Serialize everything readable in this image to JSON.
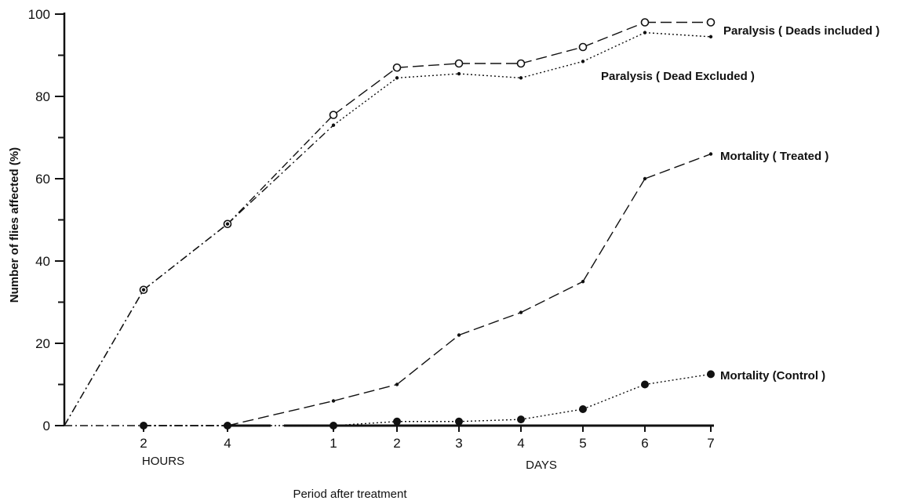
{
  "chart_data": {
    "type": "line",
    "ylabel": "Number of flies affected (%)",
    "xlabel": "Period after treatment",
    "ylim": [
      0,
      100
    ],
    "y_ticks": [
      "0",
      "20",
      "40",
      "60",
      "80",
      "100"
    ],
    "x_ticks": [
      "2",
      "4",
      "1",
      "2",
      "3",
      "4",
      "5",
      "6",
      "7"
    ],
    "x_group_labels": [
      "HOURS",
      "DAYS"
    ],
    "grid": false,
    "legend": "none",
    "series": [
      {
        "name": "Paralysis (Deads included)",
        "label_display": "Paralysis ( Deads included )",
        "line_style": "dashed",
        "marker": "open-circle",
        "x": [
          "0 h",
          "2 h",
          "4 h",
          "1 d",
          "2 d",
          "3 d",
          "4 d",
          "5 d",
          "6 d",
          "7 d"
        ],
        "values": [
          0,
          33,
          49,
          75.5,
          87,
          88,
          88,
          92,
          98,
          98
        ]
      },
      {
        "name": "Paralysis (Dead Excluded)",
        "label_display": "Paralysis   ( Dead  Excluded )",
        "line_style": "dotted",
        "marker": "small-dot",
        "x": [
          "0 h",
          "2 h",
          "4 h",
          "1 d",
          "2 d",
          "3 d",
          "4 d",
          "5 d",
          "6 d",
          "7 d"
        ],
        "values": [
          0,
          33,
          49,
          73,
          84.5,
          85.5,
          84.5,
          88.5,
          95.5,
          94.5
        ]
      },
      {
        "name": "Mortality (Treated)",
        "label_display": "Mortality  ( Treated )",
        "line_style": "dashed",
        "marker": "small-dot",
        "x": [
          "2 h",
          "4 h",
          "1 d",
          "2 d",
          "3 d",
          "4 d",
          "5 d",
          "6 d",
          "7 d"
        ],
        "values": [
          0,
          0,
          6,
          10,
          22,
          27.5,
          35,
          60,
          66
        ]
      },
      {
        "name": "Mortality (Control)",
        "label_display": "Mortality  (Control )",
        "line_style": "dotted",
        "marker": "filled-circle",
        "x": [
          "2 h",
          "4 h",
          "1 d",
          "2 d",
          "3 d",
          "4 d",
          "5 d",
          "6 d",
          "7 d"
        ],
        "values": [
          0,
          0,
          0,
          1,
          1,
          1.5,
          4,
          10,
          12.5
        ]
      }
    ]
  }
}
